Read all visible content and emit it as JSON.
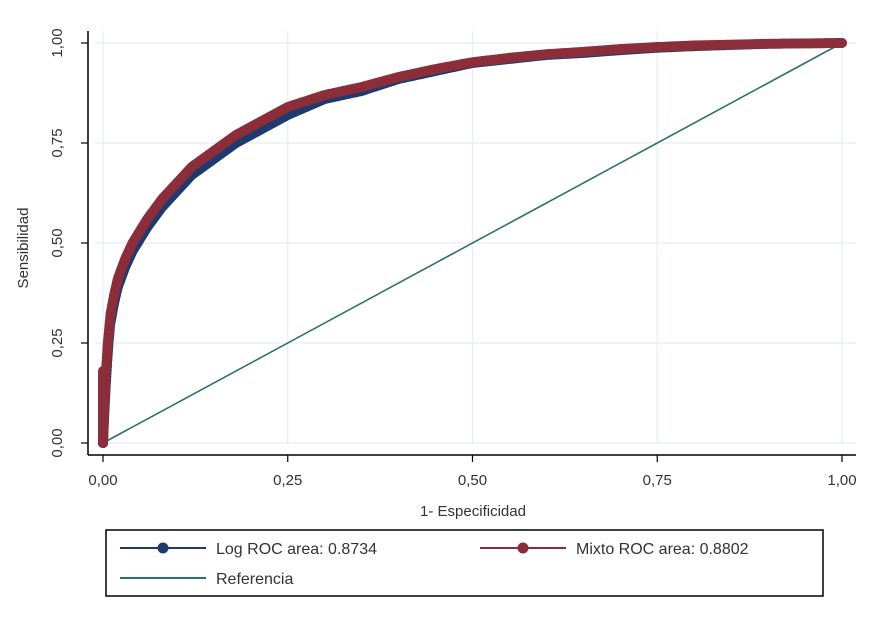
{
  "chart_data": {
    "type": "line",
    "title": "",
    "xlabel": "1- Especificidad",
    "ylabel": "Sensibilidad",
    "xlim": [
      0,
      1
    ],
    "ylim": [
      0,
      1
    ],
    "grid": true,
    "legend_position": "bottom",
    "x_ticks": [
      {
        "value": 0,
        "label": "0,00"
      },
      {
        "value": 0.25,
        "label": "0,25"
      },
      {
        "value": 0.5,
        "label": "0,50"
      },
      {
        "value": 0.75,
        "label": "0,75"
      },
      {
        "value": 1,
        "label": "1,00"
      }
    ],
    "y_ticks": [
      {
        "value": 0,
        "label": "0,00"
      },
      {
        "value": 0.25,
        "label": "0,25"
      },
      {
        "value": 0.5,
        "label": "0,50"
      },
      {
        "value": 0.75,
        "label": "0,75"
      },
      {
        "value": 1,
        "label": "1,00"
      }
    ],
    "series": [
      {
        "name": "Log ROC area: 0.8734",
        "color": "#1f3b6e",
        "marker": "circle",
        "x": [
          0,
          0.002,
          0.004,
          0.006,
          0.008,
          0.01,
          0.015,
          0.02,
          0.03,
          0.04,
          0.05,
          0.06,
          0.08,
          0.1,
          0.12,
          0.15,
          0.18,
          0.2,
          0.25,
          0.3,
          0.35,
          0.4,
          0.45,
          0.5,
          0.55,
          0.6,
          0.65,
          0.7,
          0.75,
          0.8,
          0.85,
          0.9,
          0.95,
          1
        ],
        "y": [
          0,
          0.08,
          0.15,
          0.21,
          0.26,
          0.3,
          0.35,
          0.39,
          0.44,
          0.48,
          0.51,
          0.54,
          0.59,
          0.63,
          0.67,
          0.71,
          0.75,
          0.77,
          0.82,
          0.86,
          0.88,
          0.91,
          0.93,
          0.95,
          0.96,
          0.97,
          0.975,
          0.982,
          0.988,
          0.992,
          0.995,
          0.998,
          0.999,
          1
        ]
      },
      {
        "name": "Mixto ROC area: 0.8802",
        "color": "#8b2e3a",
        "marker": "circle",
        "x": [
          0,
          0.002,
          0.004,
          0.006,
          0.008,
          0.01,
          0.015,
          0.02,
          0.03,
          0.04,
          0.05,
          0.06,
          0.08,
          0.1,
          0.12,
          0.15,
          0.18,
          0.2,
          0.25,
          0.3,
          0.35,
          0.4,
          0.45,
          0.5,
          0.55,
          0.6,
          0.65,
          0.7,
          0.75,
          0.8,
          0.85,
          0.9,
          0.95,
          1
        ],
        "y": [
          0,
          0.1,
          0.18,
          0.24,
          0.28,
          0.32,
          0.37,
          0.41,
          0.46,
          0.5,
          0.53,
          0.56,
          0.61,
          0.65,
          0.69,
          0.73,
          0.77,
          0.79,
          0.84,
          0.87,
          0.89,
          0.915,
          0.935,
          0.952,
          0.963,
          0.972,
          0.978,
          0.985,
          0.99,
          0.994,
          0.996,
          0.998,
          0.999,
          1
        ]
      },
      {
        "name": "Referencia",
        "color": "#2f6f6f",
        "marker": "none",
        "x": [
          0,
          1
        ],
        "y": [
          0,
          1
        ]
      }
    ]
  }
}
